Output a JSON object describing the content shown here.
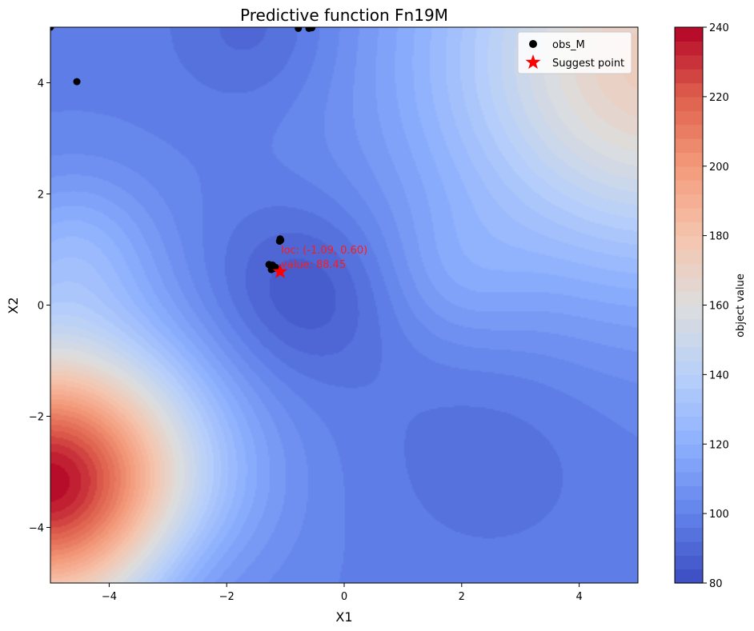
{
  "chart_data": {
    "type": "heatmap",
    "title": "Predictive function Fn19M",
    "xlabel": "X1",
    "ylabel": "X2",
    "xlim": [
      -5,
      5
    ],
    "ylim": [
      -5,
      5
    ],
    "xticks": [
      -4,
      -2,
      0,
      2,
      4
    ],
    "yticks": [
      -4,
      -2,
      0,
      2,
      4
    ],
    "xtick_labels": [
      "−4",
      "−2",
      "0",
      "2",
      "4"
    ],
    "ytick_labels": [
      "−4",
      "−2",
      "0",
      "2",
      "4"
    ],
    "colorbar": {
      "label": "object value",
      "min": 80,
      "max": 240,
      "ticks": [
        80,
        100,
        120,
        140,
        160,
        180,
        200,
        220,
        240
      ],
      "tick_labels": [
        "80",
        "100",
        "120",
        "140",
        "160",
        "180",
        "200",
        "220",
        "240"
      ],
      "colormap": "coolwarm",
      "levels": 40
    },
    "contour_field": {
      "base": 99,
      "components": [
        {
          "type": "bump",
          "cx": -5.0,
          "cy": -3.2,
          "amp": 140,
          "sigma": 1.75
        },
        {
          "type": "bump",
          "cx": 5.3,
          "cy": 4.4,
          "amp": 75,
          "sigma": 2.6
        },
        {
          "type": "bump",
          "cx": -0.7,
          "cy": 0.2,
          "amp": -16,
          "sigma": 1.1
        },
        {
          "type": "bump",
          "cx": -4.6,
          "cy": 1.0,
          "amp": 20,
          "sigma": 1.0
        },
        {
          "type": "bump",
          "cx": -2.8,
          "cy": -4.8,
          "amp": -12,
          "sigma": 1.0
        },
        {
          "type": "bump",
          "cx": 2.5,
          "cy": -2.5,
          "amp": -6,
          "sigma": 1.5
        },
        {
          "type": "bump",
          "cx": -1.5,
          "cy": 5.0,
          "amp": -10,
          "sigma": 1.0
        },
        {
          "type": "bump",
          "cx": 1.9,
          "cy": 0.5,
          "amp": 9,
          "sigma": 0.9
        }
      ]
    },
    "series": [
      {
        "name": "obs_M",
        "type": "scatter",
        "color": "#000000",
        "points": [
          [
            -5.0,
            5.0
          ],
          [
            -4.55,
            4.02
          ],
          [
            -0.78,
            4.98
          ],
          [
            -0.6,
            4.98
          ],
          [
            -0.55,
            4.99
          ],
          [
            -1.09,
            1.19
          ],
          [
            -1.1,
            1.15
          ],
          [
            -1.08,
            1.17
          ],
          [
            -1.28,
            0.73
          ],
          [
            -1.22,
            0.72
          ],
          [
            -1.2,
            0.66
          ],
          [
            -1.24,
            0.64
          ],
          [
            -1.17,
            0.68
          ]
        ]
      },
      {
        "name": "Suggest point",
        "type": "scatter",
        "marker": "star",
        "color": "#ff0000",
        "points": [
          [
            -1.09,
            0.6
          ]
        ]
      }
    ],
    "annotations": [
      {
        "text": "loc: (-1.09, 0.60)",
        "x": -1.09,
        "y": 0.93
      },
      {
        "text": "value: 88.45",
        "x": -1.09,
        "y": 0.67
      }
    ],
    "legend": {
      "placement": "top-right",
      "entries": [
        "obs_M",
        "Suggest point"
      ]
    },
    "grid": false
  }
}
